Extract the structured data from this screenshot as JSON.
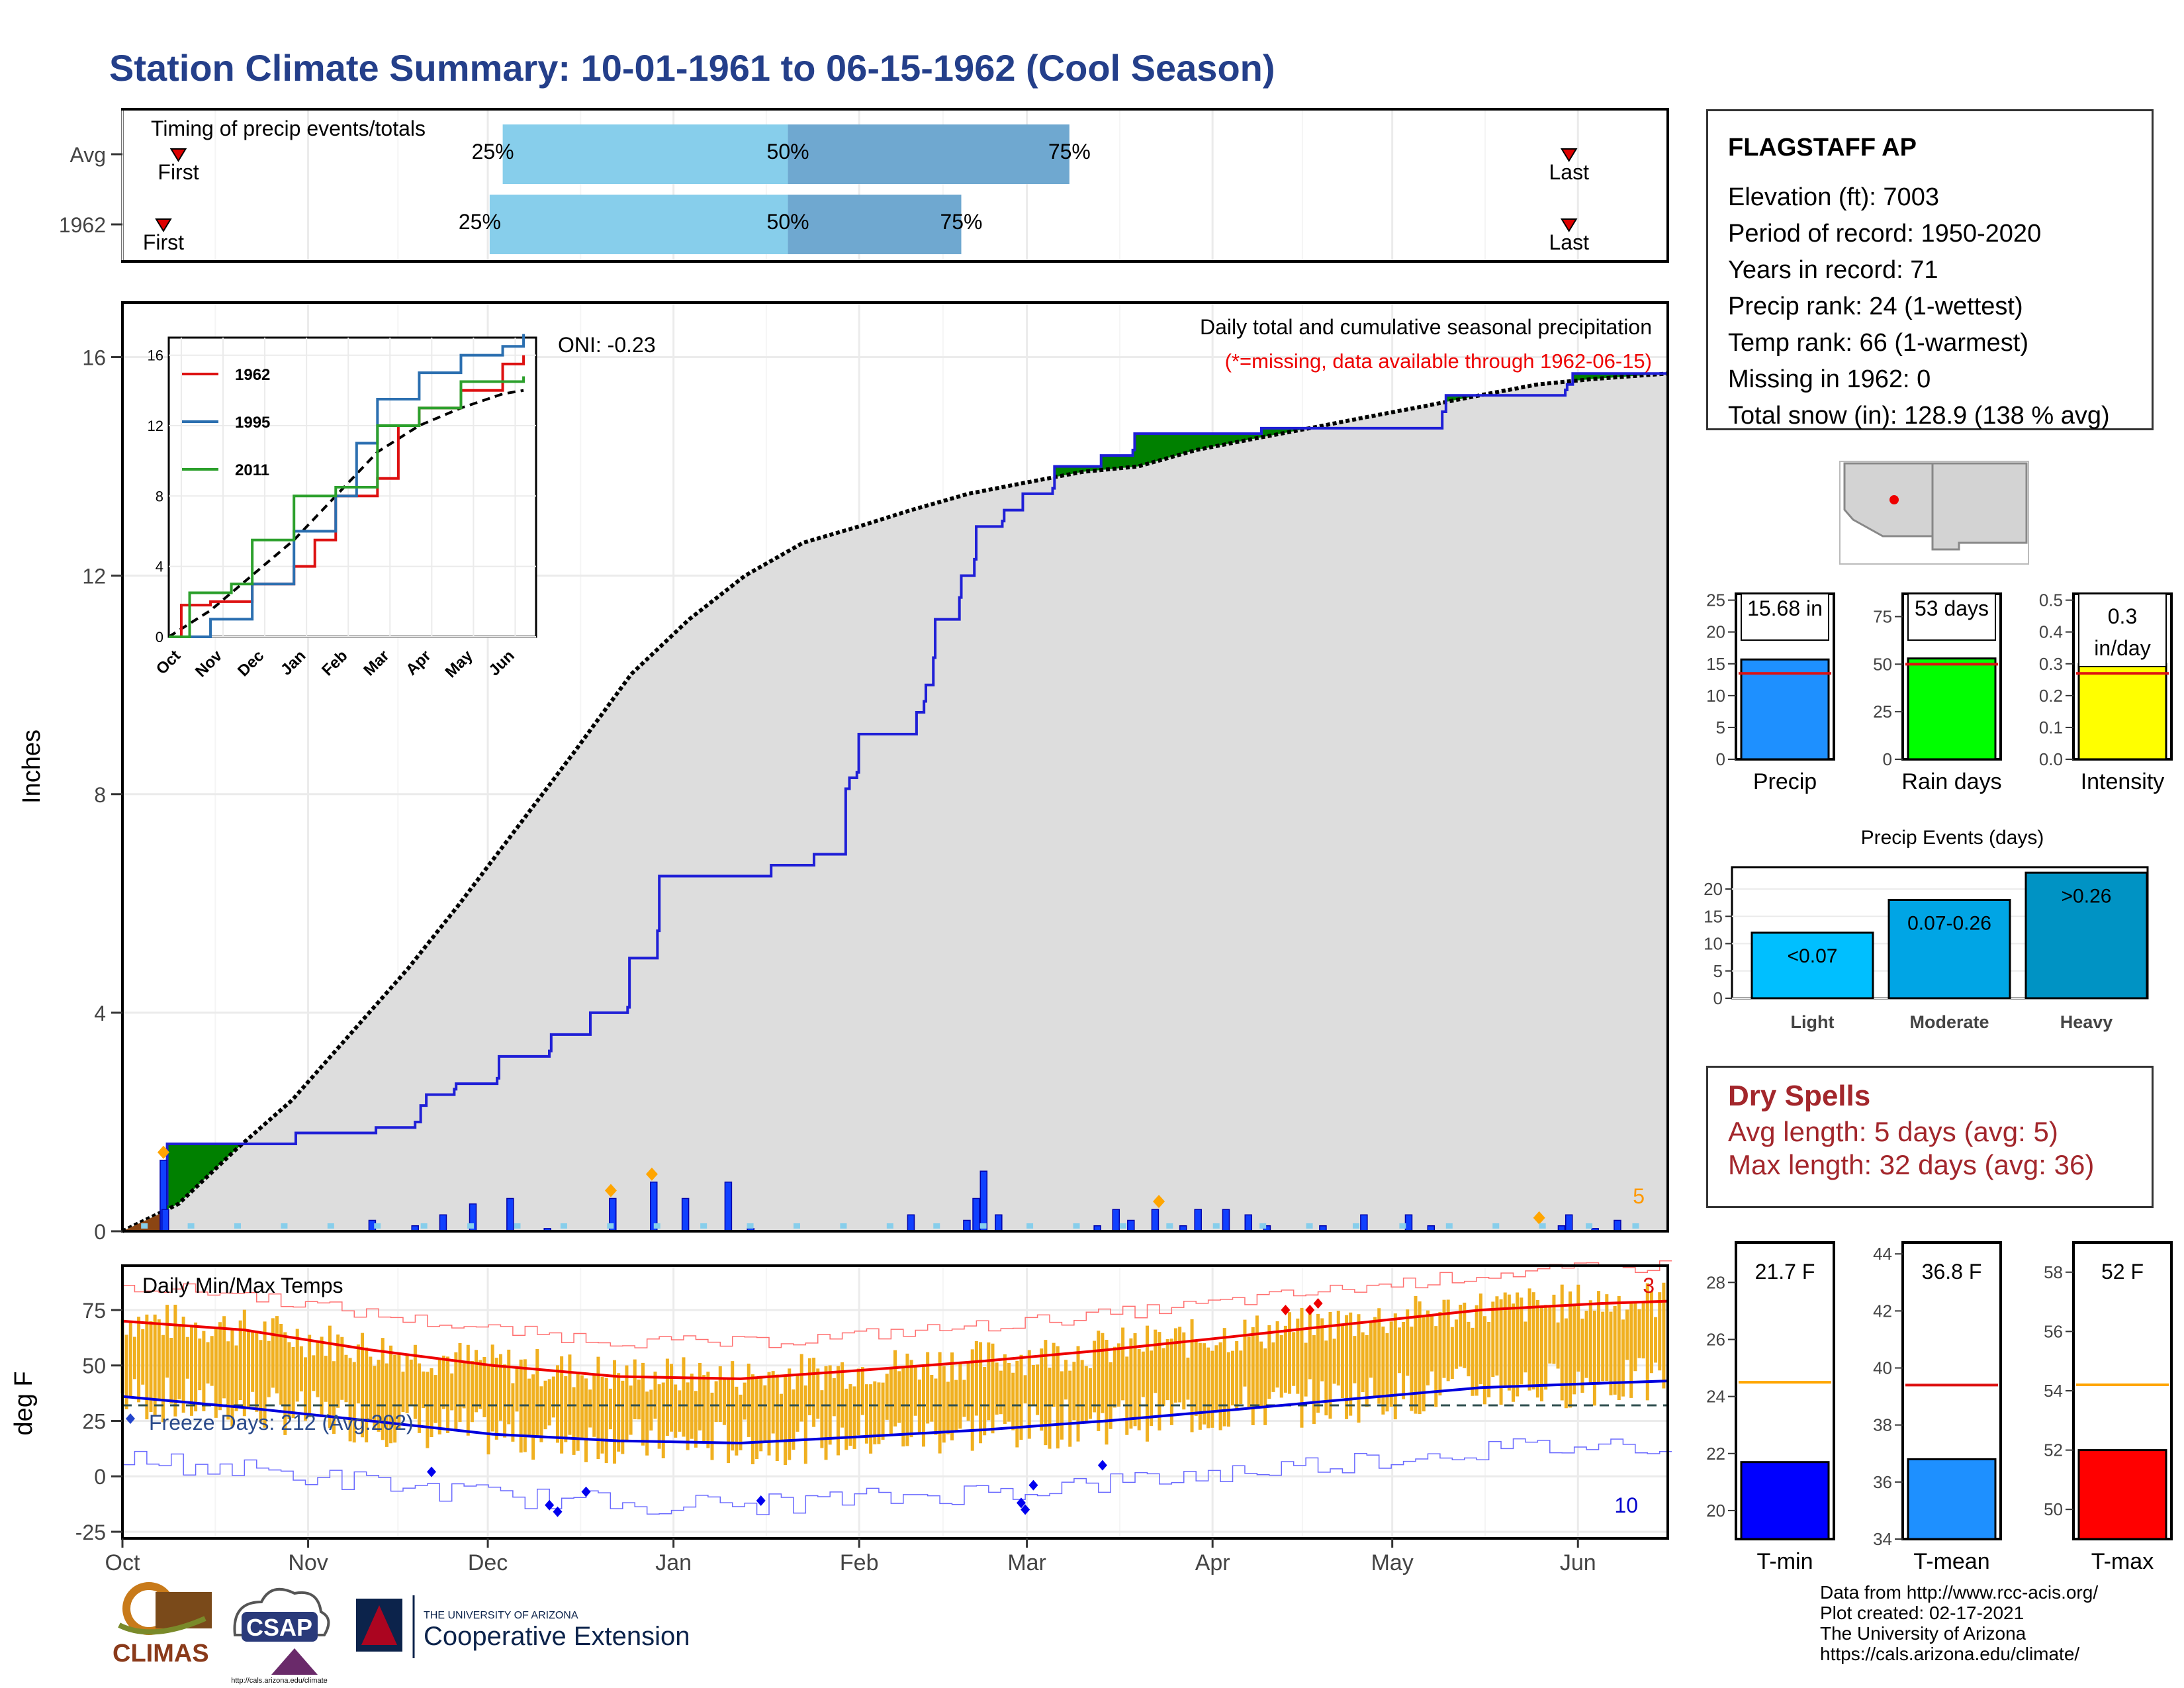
{
  "title": "Station Climate Summary: 10-01-1961 to 06-15-1962 (Cool Season)",
  "station": {
    "name": "FLAGSTAFF AP",
    "lines": [
      "Elevation (ft): 7003",
      "Period of record: 1950-2020",
      "Years in record: 71",
      "Precip rank: 24 (1-wettest)",
      "Temp rank: 66 (1-warmest)",
      "Missing in 1962: 0",
      "Total snow (in): 128.9 (138 % avg)"
    ]
  },
  "dry_spells": {
    "title": "Dry Spells",
    "avg": "Avg length: 5 days (avg: 5)",
    "max": "Max length: 32 days (avg: 36)"
  },
  "credits": [
    "Data from http://www.rcc-acis.org/",
    "Plot created: 02-17-2021",
    "The University of Arizona",
    "https://cals.arizona.edu/climate/"
  ],
  "logos": {
    "climas": "CLIMAS",
    "csap": "CSAP",
    "csap_url": "http://cals.arizona.edu/climate",
    "ua_small": "THE UNIVERSITY OF ARIZONA",
    "ua_big": "Cooperative Extension"
  },
  "colors": {
    "title": "#243f8a",
    "green": "#008000",
    "grey": "#dddddd",
    "blue": "#1f1fd6",
    "light": "#00bfff",
    "moderate": "#00a5e5",
    "heavy": "#0093c4",
    "precip": "#1e90ff",
    "raindays": "#00ff00",
    "intensity": "#ffff00",
    "tmin": "#0000ff",
    "tmean": "#1e90ff",
    "tmax": "#ff0000",
    "bars": "#f0b020"
  },
  "month_labels": [
    "Oct",
    "Nov",
    "Dec",
    "Jan",
    "Feb",
    "Mar",
    "Apr",
    "May",
    "Jun"
  ],
  "chart_data": [
    {
      "type": "bar",
      "id": "timing",
      "title": "Timing of precip events/totals",
      "categories": [
        "Avg",
        "1962"
      ],
      "segments": [
        {
          "row": "Avg",
          "first_day": 30,
          "p25_day": 204,
          "p50_day": 357,
          "p75_day": 508,
          "last_day": 776
        },
        {
          "row": "1962",
          "first_day": 22,
          "p25_day": 197,
          "p50_day": 357,
          "p75_day": 450,
          "last_day": 776
        }
      ],
      "labels": {
        "p25": "25%",
        "p50": "50%",
        "p75": "75%",
        "first": "First",
        "last": "Last"
      }
    },
    {
      "type": "area",
      "id": "cumulative",
      "title": "Daily total and cumulative seasonal precipitation",
      "subtitle": "(*=missing, data available through 1962-06-15)",
      "oni": "ONI: -0.23",
      "ylabel": "Inches",
      "ylim": [
        0,
        17
      ],
      "yticks": [
        0,
        4,
        8,
        12,
        16
      ],
      "corner_count": "5",
      "cumulative_1962": [
        [
          0,
          0
        ],
        [
          23,
          0.5
        ],
        [
          24,
          1.6
        ],
        [
          92,
          1.6
        ],
        [
          93,
          1.8
        ],
        [
          135,
          1.8
        ],
        [
          136,
          1.9
        ],
        [
          157,
          2.0
        ],
        [
          160,
          2.3
        ],
        [
          163,
          2.5
        ],
        [
          178,
          2.6
        ],
        [
          179,
          2.7
        ],
        [
          201,
          2.8
        ],
        [
          202,
          3.2
        ],
        [
          229,
          3.3
        ],
        [
          230,
          3.6
        ],
        [
          250,
          3.6
        ],
        [
          251,
          4.0
        ],
        [
          271,
          4.1
        ],
        [
          272,
          5.0
        ],
        [
          287,
          5.5
        ],
        [
          288,
          6.5
        ],
        [
          347,
          6.5
        ],
        [
          348,
          6.7
        ],
        [
          370,
          6.7
        ],
        [
          371,
          6.9
        ],
        [
          387,
          6.9
        ],
        [
          388,
          8.1
        ],
        [
          390,
          8.3
        ],
        [
          394,
          8.4
        ],
        [
          395,
          9.1
        ],
        [
          425,
          9.1
        ],
        [
          426,
          9.5
        ],
        [
          430,
          9.7
        ],
        [
          431,
          10.0
        ],
        [
          435,
          10.5
        ],
        [
          436,
          11.2
        ],
        [
          449,
          11.6
        ],
        [
          450,
          12.0
        ],
        [
          457,
          12.3
        ],
        [
          458,
          12.9
        ],
        [
          472,
          13.0
        ],
        [
          473,
          13.2
        ],
        [
          482,
          13.2
        ],
        [
          483,
          13.5
        ],
        [
          499,
          13.6
        ],
        [
          500,
          14.0
        ],
        [
          525,
          14.2
        ],
        [
          542,
          14.3
        ],
        [
          543,
          14.6
        ],
        [
          610,
          14.6
        ],
        [
          611,
          14.7
        ],
        [
          693,
          14.7
        ],
        [
          707,
          14.7
        ],
        [
          708,
          15.0
        ],
        [
          710,
          15.3
        ],
        [
          773,
          15.3
        ],
        [
          774,
          15.4
        ],
        [
          775,
          15.5
        ],
        [
          778,
          15.7
        ],
        [
          829,
          15.7
        ]
      ],
      "cumulative_avg": [
        [
          0,
          0
        ],
        [
          30,
          0.5
        ],
        [
          61,
          1.5
        ],
        [
          91,
          2.4
        ],
        [
          122,
          3.6
        ],
        [
          153,
          4.8
        ],
        [
          181,
          6.0
        ],
        [
          212,
          7.4
        ],
        [
          243,
          8.8
        ],
        [
          273,
          10.2
        ],
        [
          304,
          11.2
        ],
        [
          334,
          12.0
        ],
        [
          365,
          12.6
        ],
        [
          395,
          12.9
        ],
        [
          423,
          13.2
        ],
        [
          454,
          13.5
        ],
        [
          484,
          13.7
        ],
        [
          515,
          13.9
        ],
        [
          545,
          14.0
        ],
        [
          576,
          14.3
        ],
        [
          606,
          14.5
        ],
        [
          637,
          14.7
        ],
        [
          667,
          14.9
        ],
        [
          698,
          15.1
        ],
        [
          728,
          15.3
        ],
        [
          759,
          15.5
        ],
        [
          789,
          15.6
        ],
        [
          829,
          15.7
        ]
      ]
    },
    {
      "type": "line",
      "id": "inset",
      "series": [
        {
          "name": "1962",
          "color": "#dd1111",
          "points": [
            [
              0,
              0
            ],
            [
              0.3,
              1.8
            ],
            [
              1,
              2
            ],
            [
              2,
              3
            ],
            [
              3,
              4
            ],
            [
              3.5,
              5.5
            ],
            [
              4,
              8
            ],
            [
              5,
              9
            ],
            [
              5.5,
              12
            ],
            [
              6,
              13
            ],
            [
              7,
              14
            ],
            [
              8,
              15.5
            ],
            [
              8.5,
              16
            ]
          ]
        },
        {
          "name": "1995",
          "color": "#2b6fb0",
          "points": [
            [
              0,
              0
            ],
            [
              1,
              1
            ],
            [
              2,
              3
            ],
            [
              3,
              6
            ],
            [
              4,
              8
            ],
            [
              4.5,
              11
            ],
            [
              5,
              13.5
            ],
            [
              6,
              15
            ],
            [
              7,
              16
            ],
            [
              8,
              16.5
            ],
            [
              8.5,
              17.2
            ]
          ]
        },
        {
          "name": "2011",
          "color": "#2ca02c",
          "points": [
            [
              0,
              0
            ],
            [
              0.5,
              2.5
            ],
            [
              1.5,
              3
            ],
            [
              2,
              5.5
            ],
            [
              3,
              8
            ],
            [
              4,
              8.5
            ],
            [
              5,
              12
            ],
            [
              6,
              13
            ],
            [
              7,
              14.5
            ],
            [
              8.5,
              14.8
            ]
          ]
        }
      ],
      "avg": [
        [
          0,
          0
        ],
        [
          1,
          1.5
        ],
        [
          2,
          3.5
        ],
        [
          3,
          5.5
        ],
        [
          4,
          8
        ],
        [
          5,
          10.5
        ],
        [
          6,
          12
        ],
        [
          7,
          13
        ],
        [
          8,
          13.8
        ],
        [
          8.5,
          14
        ]
      ],
      "ylim": [
        0,
        17
      ],
      "yticks": [
        0,
        4,
        8,
        12,
        16
      ],
      "xticks": [
        "Oct",
        "Nov",
        "Dec",
        "Jan",
        "Feb",
        "Mar",
        "Apr",
        "May",
        "Jun"
      ]
    },
    {
      "type": "bar",
      "id": "daily_precip",
      "values": [
        [
          22,
          1.3
        ],
        [
          23,
          0.4
        ],
        [
          134,
          0.2
        ],
        [
          157,
          0.1
        ],
        [
          172,
          0.3
        ],
        [
          188,
          0.5
        ],
        [
          208,
          0.6
        ],
        [
          228,
          0.05
        ],
        [
          263,
          0.6
        ],
        [
          285,
          0.9
        ],
        [
          302,
          0.6
        ],
        [
          325,
          0.9
        ],
        [
          337,
          0.05
        ],
        [
          423,
          0.3
        ],
        [
          453,
          0.2
        ],
        [
          458,
          0.6
        ],
        [
          462,
          1.1
        ],
        [
          470,
          0.3
        ],
        [
          523,
          0.1
        ],
        [
          533,
          0.4
        ],
        [
          541,
          0.2
        ],
        [
          554,
          0.4
        ],
        [
          569,
          0.1
        ],
        [
          577,
          0.4
        ],
        [
          592,
          0.4
        ],
        [
          604,
          0.3
        ],
        [
          614,
          0.1
        ],
        [
          644,
          0.1
        ],
        [
          666,
          0.3
        ],
        [
          690,
          0.3
        ],
        [
          702,
          0.1
        ],
        [
          772,
          0.1
        ],
        [
          776,
          0.3
        ],
        [
          790,
          0.05
        ],
        [
          802,
          0.2
        ]
      ],
      "max_markers": [
        22,
        262,
        284,
        556,
        760
      ]
    },
    {
      "type": "bar",
      "id": "temps",
      "title": "Daily Min/Max Temps",
      "ylabel": "deg F",
      "ylim": [
        -28,
        95
      ],
      "yticks": [
        -25,
        0,
        25,
        50,
        75
      ],
      "freeze_label": "Freeze Days: 212 (Avg:202)",
      "freeze_line": 32,
      "record_high_count": "3",
      "record_low_count": "10",
      "avg_max_curve": [
        [
          0,
          70
        ],
        [
          30,
          66
        ],
        [
          61,
          57
        ],
        [
          91,
          50
        ],
        [
          122,
          45
        ],
        [
          152,
          44
        ],
        [
          183,
          48
        ],
        [
          212,
          52
        ],
        [
          242,
          57
        ],
        [
          273,
          63
        ],
        [
          303,
          69
        ],
        [
          334,
          75
        ],
        [
          364,
          78
        ],
        [
          380,
          79
        ]
      ],
      "avg_min_curve": [
        [
          0,
          36
        ],
        [
          30,
          31
        ],
        [
          61,
          25
        ],
        [
          91,
          19
        ],
        [
          122,
          16
        ],
        [
          152,
          15
        ],
        [
          183,
          18
        ],
        [
          212,
          21
        ],
        [
          242,
          25
        ],
        [
          273,
          30
        ],
        [
          303,
          35
        ],
        [
          334,
          40
        ],
        [
          364,
          42
        ],
        [
          380,
          43
        ]
      ],
      "record_lows": [
        [
          76,
          2
        ],
        [
          105,
          -13
        ],
        [
          107,
          -16
        ],
        [
          114,
          -7
        ],
        [
          157,
          -11
        ],
        [
          221,
          -12
        ],
        [
          222,
          -15
        ],
        [
          224,
          -4
        ],
        [
          241,
          5
        ]
      ],
      "record_highs": [
        [
          286,
          75
        ],
        [
          292,
          75
        ],
        [
          294,
          78
        ]
      ]
    },
    {
      "type": "bar",
      "id": "precip_summary",
      "panels": [
        {
          "name": "Precip",
          "value": 15.68,
          "avg": 13.5,
          "label": "15.68 in",
          "ylim": [
            0,
            26
          ],
          "yticks": [
            0,
            5,
            10,
            15,
            20,
            25
          ]
        },
        {
          "name": "Rain days",
          "value": 53,
          "avg": 50,
          "label": "53 days",
          "ylim": [
            0,
            87
          ],
          "yticks": [
            0,
            25,
            50,
            75
          ]
        },
        {
          "name": "Intensity",
          "value": 0.3,
          "avg": 0.27,
          "label": "0.3 in/day",
          "ylim": [
            0,
            0.52
          ],
          "yticks": [
            0.0,
            0.1,
            0.2,
            0.3,
            0.4,
            0.5
          ]
        }
      ]
    },
    {
      "type": "bar",
      "id": "precip_events",
      "title": "Precip Events (days)",
      "categories": [
        "Light",
        "Moderate",
        "Heavy"
      ],
      "values": [
        12,
        18,
        23
      ],
      "labels": [
        "<0.07",
        "0.07-0.26",
        ">0.26"
      ],
      "ylim": [
        0,
        24
      ],
      "yticks": [
        0,
        5,
        10,
        15,
        20
      ]
    },
    {
      "type": "bar",
      "id": "temp_summary",
      "panels": [
        {
          "name": "T-min",
          "value": 21.7,
          "avg": 24.5,
          "label": "21.7 F",
          "ylim": [
            19,
            29.4
          ],
          "yticks": [
            20,
            22,
            24,
            26,
            28
          ]
        },
        {
          "name": "T-mean",
          "value": 36.8,
          "avg": 39.4,
          "label": "36.8 F",
          "ylim": [
            34,
            44.4
          ],
          "yticks": [
            34,
            36,
            38,
            40,
            42,
            44
          ]
        },
        {
          "name": "T-max",
          "value": 52,
          "avg": 54.2,
          "label": "52 F",
          "ylim": [
            49,
            59
          ],
          "yticks": [
            50,
            52,
            54,
            56,
            58
          ]
        }
      ]
    }
  ]
}
